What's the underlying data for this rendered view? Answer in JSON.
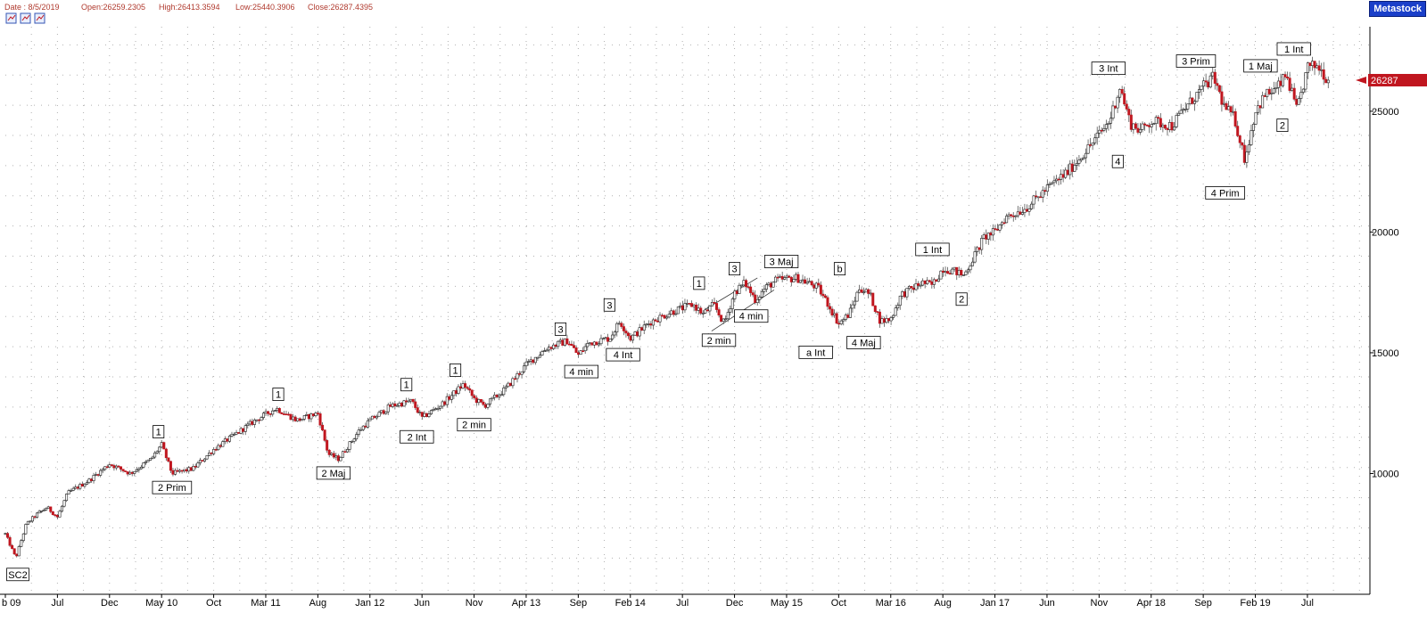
{
  "header": {
    "date": "Date : 8/5/2019",
    "open": "Open:26259.2305",
    "high": "High:26413.3594",
    "low": "Low:25440.3906",
    "close": "Close:26287.4395",
    "brand": "Metastock",
    "icons": [
      "zoom-in-icon",
      "zoom-out-icon",
      "zoom-reset-icon"
    ]
  },
  "colors": {
    "up": "#1a1a1a",
    "down": "#c0161f",
    "grid": "#b0b0b0",
    "last_price_bg": "#c0161f",
    "header_text": "#b03a2e",
    "brand_bg": "#1a3fc9"
  },
  "chart_data": {
    "type": "candlestick",
    "last_price_label": "26287",
    "yticks": [
      10000,
      15000,
      20000,
      25000
    ],
    "ytick_labels": [
      "10000",
      "15000",
      "20000",
      "25000"
    ],
    "xticks": [
      {
        "t": 0,
        "label": "b 09"
      },
      {
        "t": 5,
        "label": "Jul"
      },
      {
        "t": 10,
        "label": "Dec"
      },
      {
        "t": 15,
        "label": "May 10"
      },
      {
        "t": 20,
        "label": "Oct"
      },
      {
        "t": 25,
        "label": "Mar 11"
      },
      {
        "t": 30,
        "label": "Aug"
      },
      {
        "t": 35,
        "label": "Jan 12"
      },
      {
        "t": 40,
        "label": "Jun"
      },
      {
        "t": 45,
        "label": "Nov"
      },
      {
        "t": 50,
        "label": "Apr 13"
      },
      {
        "t": 55,
        "label": "Sep"
      },
      {
        "t": 60,
        "label": "Feb 14"
      },
      {
        "t": 65,
        "label": "Jul"
      },
      {
        "t": 70,
        "label": "Dec"
      },
      {
        "t": 75,
        "label": "May 15"
      },
      {
        "t": 80,
        "label": "Oct"
      },
      {
        "t": 85,
        "label": "Mar 16"
      },
      {
        "t": 90,
        "label": "Aug"
      },
      {
        "t": 95,
        "label": "Jan 17"
      },
      {
        "t": 100,
        "label": "Jun"
      },
      {
        "t": 105,
        "label": "Nov"
      },
      {
        "t": 110,
        "label": "Apr 18"
      },
      {
        "t": 115,
        "label": "Sep"
      },
      {
        "t": 120,
        "label": "Feb 19"
      },
      {
        "t": 125,
        "label": "Jul"
      }
    ],
    "ylim": [
      5000,
      28500
    ],
    "tlim": [
      0,
      131
    ],
    "anchors": [
      [
        0,
        7500
      ],
      [
        1,
        6500
      ],
      [
        2,
        7900
      ],
      [
        3,
        8300
      ],
      [
        4,
        8600
      ],
      [
        5,
        8200
      ],
      [
        6,
        9200
      ],
      [
        8,
        9700
      ],
      [
        10,
        10400
      ],
      [
        12,
        10000
      ],
      [
        14,
        10600
      ],
      [
        15,
        11200
      ],
      [
        16,
        10000
      ],
      [
        18,
        10200
      ],
      [
        20,
        11000
      ],
      [
        22,
        11600
      ],
      [
        24,
        12200
      ],
      [
        26,
        12700
      ],
      [
        28,
        12200
      ],
      [
        30,
        12500
      ],
      [
        31,
        10800
      ],
      [
        32,
        10600
      ],
      [
        34,
        11800
      ],
      [
        35,
        12200
      ],
      [
        37,
        12800
      ],
      [
        39,
        13000
      ],
      [
        40,
        12300
      ],
      [
        42,
        12900
      ],
      [
        44,
        13700
      ],
      [
        45,
        13100
      ],
      [
        46,
        12800
      ],
      [
        48,
        13500
      ],
      [
        50,
        14500
      ],
      [
        52,
        15200
      ],
      [
        54,
        15500
      ],
      [
        55,
        14900
      ],
      [
        56,
        15400
      ],
      [
        58,
        15600
      ],
      [
        59,
        16300
      ],
      [
        60,
        15600
      ],
      [
        62,
        16300
      ],
      [
        64,
        16700
      ],
      [
        66,
        17000
      ],
      [
        67,
        16600
      ],
      [
        68,
        17000
      ],
      [
        69,
        16200
      ],
      [
        70,
        17500
      ],
      [
        71,
        17900
      ],
      [
        72,
        17200
      ],
      [
        73,
        17700
      ],
      [
        74,
        18000
      ],
      [
        76,
        18100
      ],
      [
        78,
        17700
      ],
      [
        79,
        17000
      ],
      [
        80,
        16200
      ],
      [
        81,
        16600
      ],
      [
        82,
        17700
      ],
      [
        83,
        17400
      ],
      [
        84,
        16300
      ],
      [
        85,
        16400
      ],
      [
        86,
        17400
      ],
      [
        88,
        17900
      ],
      [
        89,
        17800
      ],
      [
        90,
        18500
      ],
      [
        91,
        18400
      ],
      [
        92,
        18200
      ],
      [
        94,
        19800
      ],
      [
        95,
        20000
      ],
      [
        96,
        20600
      ],
      [
        98,
        21000
      ],
      [
        100,
        21800
      ],
      [
        102,
        22500
      ],
      [
        104,
        23500
      ],
      [
        106,
        24600
      ],
      [
        107,
        26000
      ],
      [
        108,
        24500
      ],
      [
        109,
        24200
      ],
      [
        110,
        24600
      ],
      [
        112,
        24400
      ],
      [
        113,
        25000
      ],
      [
        115,
        26000
      ],
      [
        116,
        26400
      ],
      [
        117,
        25200
      ],
      [
        118,
        24700
      ],
      [
        119,
        23000
      ],
      [
        120,
        25000
      ],
      [
        121,
        25700
      ],
      [
        122,
        25900
      ],
      [
        123,
        26500
      ],
      [
        124,
        25000
      ],
      [
        125,
        26800
      ],
      [
        126,
        26900
      ],
      [
        127,
        26287
      ]
    ],
    "annotations": [
      {
        "text": "SC2",
        "t": 1.2,
        "price": 6300,
        "pos": "below"
      },
      {
        "text": "1",
        "t": 14.7,
        "price": 11250,
        "pos": "above"
      },
      {
        "text": "2 Prim",
        "t": 16.0,
        "price": 9900,
        "pos": "below"
      },
      {
        "text": "1",
        "t": 26.2,
        "price": 12800,
        "pos": "above"
      },
      {
        "text": "2 Maj",
        "t": 31.5,
        "price": 10500,
        "pos": "below"
      },
      {
        "text": "1",
        "t": 38.5,
        "price": 13200,
        "pos": "above"
      },
      {
        "text": "2 Int",
        "t": 39.5,
        "price": 12000,
        "pos": "below"
      },
      {
        "text": "1",
        "t": 43.2,
        "price": 13800,
        "pos": "above"
      },
      {
        "text": "2 min",
        "t": 45.0,
        "price": 12500,
        "pos": "below"
      },
      {
        "text": "3",
        "t": 53.3,
        "price": 15500,
        "pos": "above"
      },
      {
        "text": "4 min",
        "t": 55.3,
        "price": 14700,
        "pos": "below"
      },
      {
        "text": "3",
        "t": 58.0,
        "price": 16500,
        "pos": "above"
      },
      {
        "text": "4 Int",
        "t": 59.3,
        "price": 15400,
        "pos": "below"
      },
      {
        "text": "1",
        "t": 66.6,
        "price": 17400,
        "pos": "above"
      },
      {
        "text": "2 min",
        "t": 68.5,
        "price": 16000,
        "pos": "below"
      },
      {
        "text": "3",
        "t": 70.0,
        "price": 18000,
        "pos": "above"
      },
      {
        "text": "4 min",
        "t": 71.6,
        "price": 17000,
        "pos": "below"
      },
      {
        "text": "3 Maj",
        "t": 74.5,
        "price": 18300,
        "pos": "above"
      },
      {
        "text": "a Int",
        "t": 77.8,
        "price": 15500,
        "pos": "below"
      },
      {
        "text": "b",
        "t": 80.1,
        "price": 18000,
        "pos": "above"
      },
      {
        "text": "4 Maj",
        "t": 82.4,
        "price": 15900,
        "pos": "below"
      },
      {
        "text": "1 Int",
        "t": 89.0,
        "price": 18800,
        "pos": "above"
      },
      {
        "text": "2",
        "t": 91.8,
        "price": 17700,
        "pos": "below"
      },
      {
        "text": "3 Int",
        "t": 105.9,
        "price": 26300,
        "pos": "above"
      },
      {
        "text": "4",
        "t": 106.8,
        "price": 23400,
        "pos": "below"
      },
      {
        "text": "3 Prim",
        "t": 114.3,
        "price": 26600,
        "pos": "above"
      },
      {
        "text": "4 Prim",
        "t": 117.1,
        "price": 22100,
        "pos": "below"
      },
      {
        "text": "1 Maj",
        "t": 120.5,
        "price": 26400,
        "pos": "above"
      },
      {
        "text": "2",
        "t": 122.6,
        "price": 24900,
        "pos": "below"
      },
      {
        "text": "1 Int",
        "t": 123.7,
        "price": 27100,
        "pos": "above"
      }
    ],
    "trendlines": [
      {
        "from": [
          67.2,
          16800
        ],
        "to": [
          72.2,
          18100
        ]
      },
      {
        "from": [
          67.8,
          15900
        ],
        "to": [
          73.8,
          17600
        ]
      }
    ]
  }
}
